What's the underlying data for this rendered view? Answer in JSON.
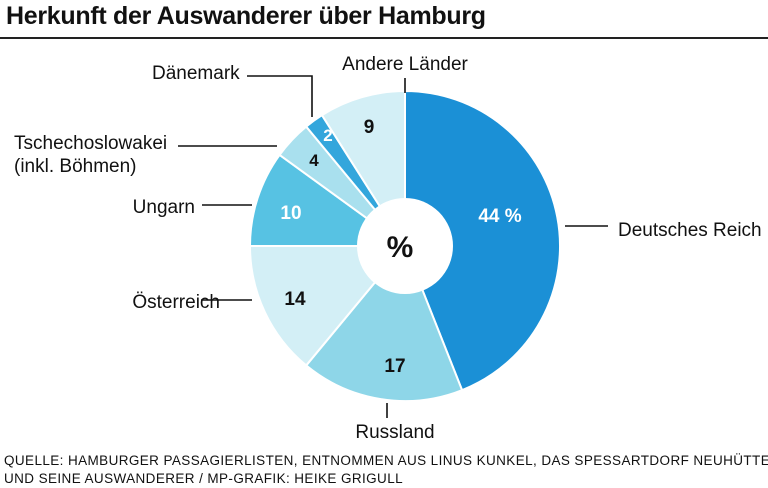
{
  "title": "Herkunft der Auswanderer über Hamburg",
  "chart_data": {
    "type": "pie",
    "center_label": "%",
    "slices": [
      {
        "label": "Deutsches Reich",
        "value": 44,
        "value_label": "44 %",
        "color": "#1b90d6",
        "text_color": "#ffffff"
      },
      {
        "label": "Russland",
        "value": 17,
        "value_label": "17",
        "color": "#8ed6e8",
        "text_color": "#111111"
      },
      {
        "label": "Österreich",
        "value": 14,
        "value_label": "14",
        "color": "#d3eff6",
        "text_color": "#111111"
      },
      {
        "label": "Ungarn",
        "value": 10,
        "value_label": "10",
        "color": "#57c2e3",
        "text_color": "#ffffff"
      },
      {
        "label": "Tschechoslowakei\n(inkl. Böhmen)",
        "value": 4,
        "value_label": "4",
        "color": "#a9e0ee",
        "text_color": "#111111"
      },
      {
        "label": "Dänemark",
        "value": 2,
        "value_label": "2",
        "color": "#33a6dc",
        "text_color": "#ffffff"
      },
      {
        "label": "Andere Länder",
        "value": 9,
        "value_label": "9",
        "color": "#d3eff6",
        "text_color": "#111111"
      }
    ]
  },
  "source_lines": [
    "QUELLE: HAMBURGER PASSAGIERLISTEN, ENTNOMMEN AUS LINUS KUNKEL, DAS SPESSARTDORF NEUHÜTTEN",
    "UND SEINE AUSWANDERER / MP-GRAFIK: HEIKE GRIGULL"
  ]
}
